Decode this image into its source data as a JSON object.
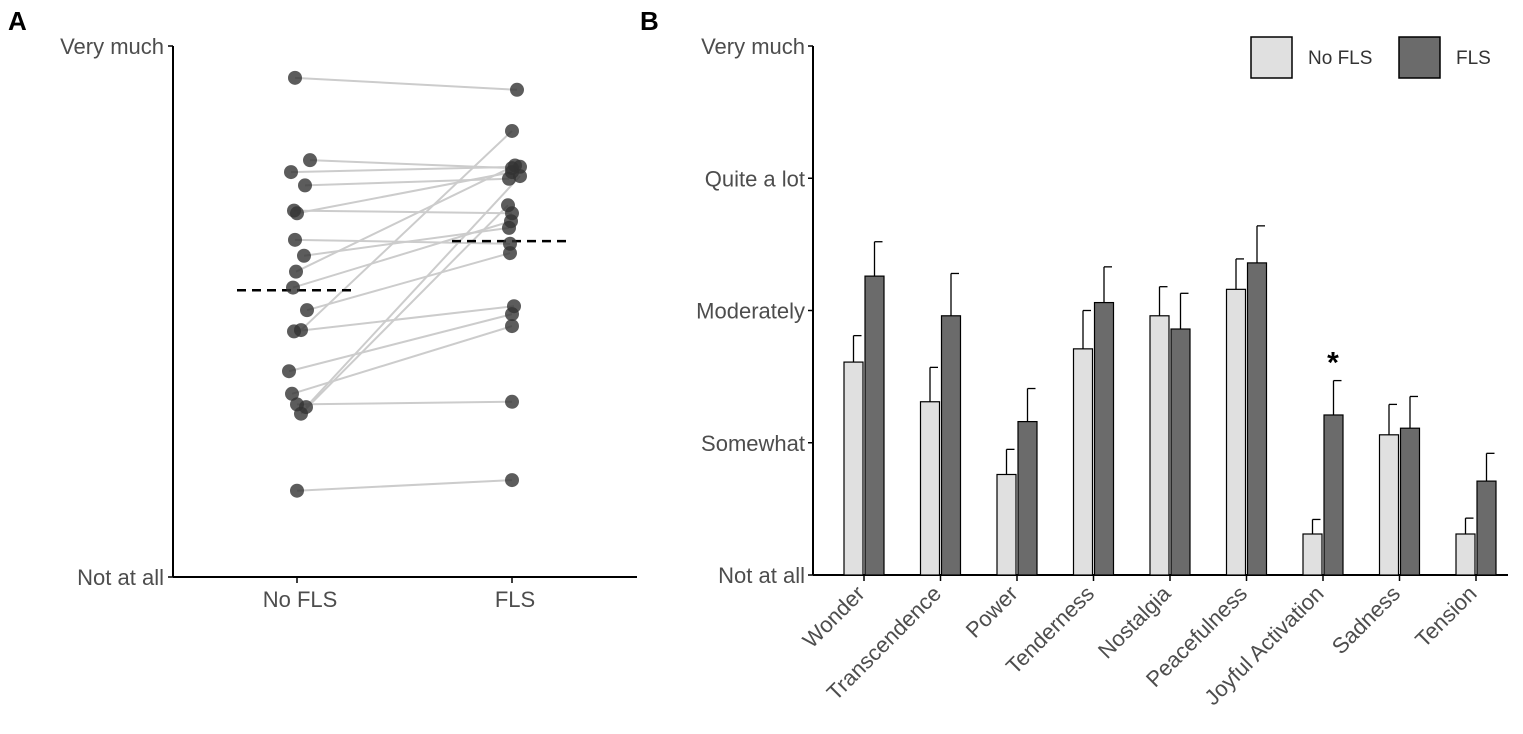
{
  "chart_data": [
    {
      "panel": "A",
      "type": "scatter",
      "categories": [
        "No FLS",
        "FLS"
      ],
      "ylim": [
        0,
        4
      ],
      "y_ticks": [
        "Not at all",
        "Very much"
      ],
      "marker_color": "#333333",
      "line_color": "#cccccc",
      "means": [
        2.16,
        2.53
      ],
      "pairs": [
        [
          3.76,
          3.67
        ],
        [
          3.14,
          3.08
        ],
        [
          3.05,
          3.09
        ],
        [
          2.95,
          3.0
        ],
        [
          2.74,
          3.05
        ],
        [
          2.76,
          2.74
        ],
        [
          2.54,
          2.51
        ],
        [
          2.42,
          2.63
        ],
        [
          2.3,
          3.1
        ],
        [
          2.18,
          2.68
        ],
        [
          2.01,
          2.44
        ],
        [
          1.85,
          2.04
        ],
        [
          1.86,
          3.36
        ],
        [
          1.55,
          1.98
        ],
        [
          1.38,
          1.89
        ],
        [
          1.28,
          3.02
        ],
        [
          1.23,
          2.8
        ],
        [
          1.3,
          1.32
        ],
        [
          0.65,
          0.73
        ]
      ]
    },
    {
      "panel": "B",
      "type": "bar",
      "categories": [
        "Wonder",
        "Transcendence",
        "Power",
        "Tenderness",
        "Nostalgia",
        "Peacefulness",
        "Joyful Activation",
        "Sadness",
        "Tension"
      ],
      "ylim": [
        0,
        4
      ],
      "y_ticks": [
        "Not at all",
        "Somewhat",
        "Moderately",
        "Quite a lot",
        "Very much"
      ],
      "series": [
        {
          "name": "No FLS",
          "color": "#e0e0e0",
          "values": [
            1.61,
            1.31,
            0.76,
            1.71,
            1.96,
            2.16,
            0.31,
            1.06,
            0.31
          ],
          "errors": [
            0.2,
            0.26,
            0.19,
            0.29,
            0.22,
            0.23,
            0.11,
            0.23,
            0.12
          ]
        },
        {
          "name": "FLS",
          "color": "#6b6b6b",
          "values": [
            2.26,
            1.96,
            1.16,
            2.06,
            1.86,
            2.36,
            1.21,
            1.11,
            0.71
          ],
          "errors": [
            0.26,
            0.32,
            0.25,
            0.27,
            0.27,
            0.28,
            0.26,
            0.24,
            0.21
          ]
        }
      ],
      "annotations": [
        {
          "category": "Joyful Activation",
          "text": "*"
        }
      ],
      "legend": "top-right"
    }
  ],
  "panels": {
    "a": "A",
    "b": "B"
  }
}
